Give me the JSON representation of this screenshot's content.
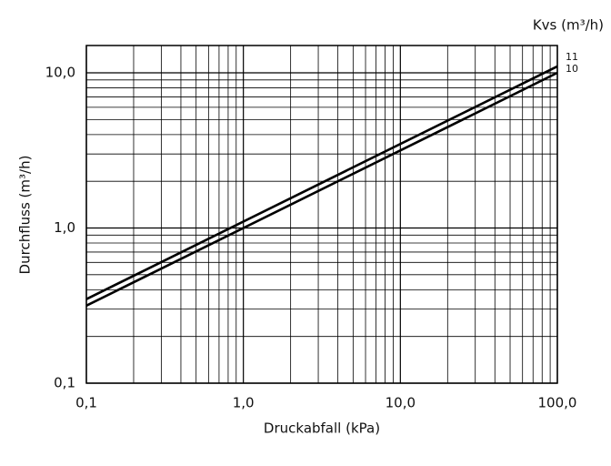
{
  "chart_data": {
    "type": "line",
    "x_label": "Druckabfall (kPa)",
    "y_label": "Durchfluss (m³/h)",
    "legend_title": "Kvs (m³/h)",
    "x": [
      0.1,
      100
    ],
    "series": [
      {
        "name": "11",
        "color": "#000000",
        "values": [
          0.348,
          11
        ]
      },
      {
        "name": "10",
        "color": "#000000",
        "values": [
          0.316,
          10
        ]
      }
    ],
    "xscale": "log",
    "yscale": "log",
    "xlim": [
      0.1,
      100
    ],
    "ylim": [
      0.1,
      15
    ],
    "xticks": [
      {
        "value": 0.1,
        "label": "0,1"
      },
      {
        "value": 1,
        "label": "1,0"
      },
      {
        "value": 10,
        "label": "10,0"
      },
      {
        "value": 100,
        "label": "100,0"
      }
    ],
    "yticks": [
      {
        "value": 0.1,
        "label": "0,1"
      },
      {
        "value": 1,
        "label": "1,0"
      },
      {
        "value": 10,
        "label": "10,0"
      }
    ],
    "x_minor_ticks": [
      0.2,
      0.3,
      0.4,
      0.5,
      0.6,
      0.7,
      0.8,
      0.9,
      2,
      3,
      4,
      5,
      6,
      7,
      8,
      9,
      20,
      30,
      40,
      50,
      60,
      70,
      80,
      90
    ],
    "y_minor_ticks": [
      0.2,
      0.3,
      0.4,
      0.5,
      0.6,
      0.7,
      0.8,
      0.9,
      2,
      3,
      4,
      5,
      6,
      7,
      8,
      9
    ],
    "grid": true
  }
}
